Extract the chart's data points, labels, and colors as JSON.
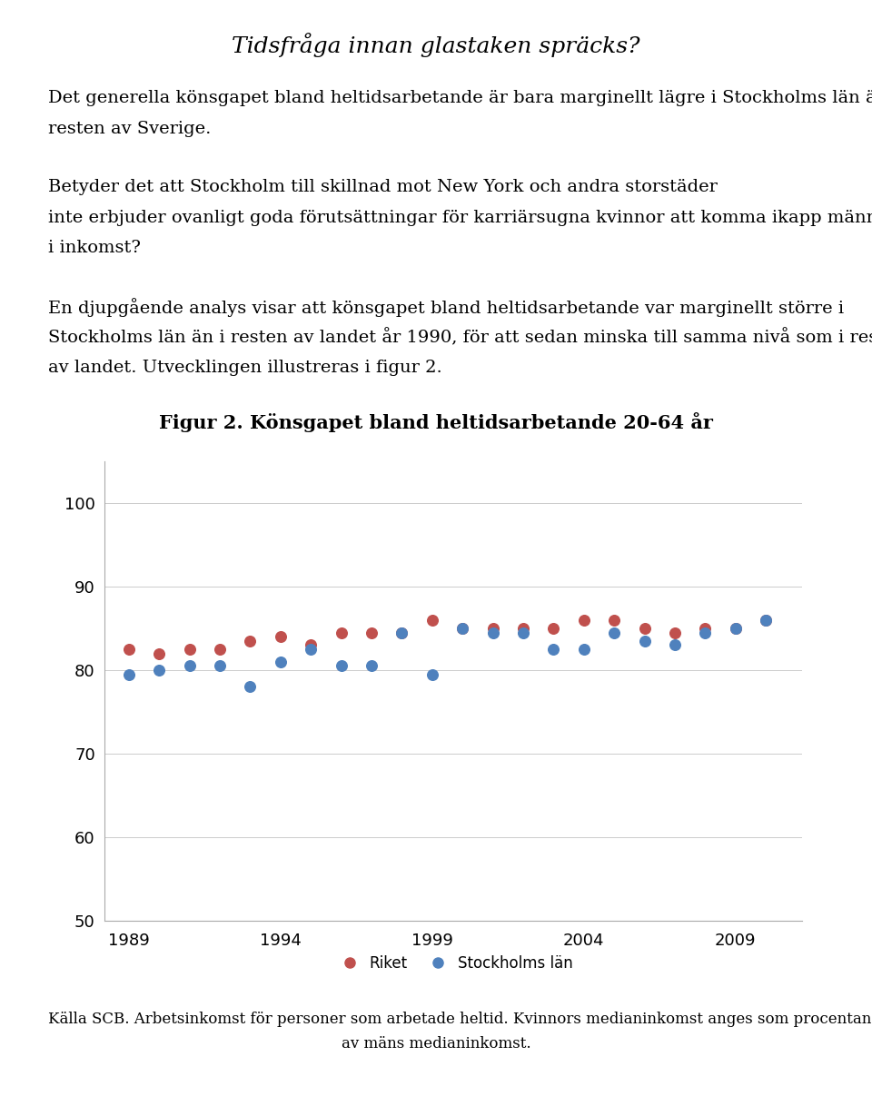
{
  "title": "Figur 2. Könsgapet bland heltidsarbetande 20-64 år",
  "riket_years": [
    1989,
    1990,
    1991,
    1992,
    1993,
    1994,
    1995,
    1996,
    1997,
    1998,
    1999,
    2000,
    2001,
    2002,
    2003,
    2004,
    2005,
    2006,
    2007,
    2008,
    2009,
    2010
  ],
  "riket_values": [
    82.5,
    82.0,
    82.5,
    82.5,
    83.5,
    84.0,
    83.0,
    84.5,
    84.5,
    84.5,
    86.0,
    85.0,
    85.0,
    85.0,
    85.0,
    86.0,
    86.0,
    85.0,
    84.5,
    85.0,
    85.0,
    86.0
  ],
  "stockholm_years": [
    1989,
    1990,
    1991,
    1992,
    1993,
    1994,
    1995,
    1996,
    1997,
    1998,
    1999,
    2000,
    2001,
    2002,
    2003,
    2004,
    2005,
    2006,
    2007,
    2008,
    2009,
    2010
  ],
  "stockholm_values": [
    79.5,
    80.0,
    80.5,
    80.5,
    78.0,
    81.0,
    82.5,
    80.5,
    80.5,
    84.5,
    79.5,
    85.0,
    84.5,
    84.5,
    82.5,
    82.5,
    84.5,
    83.5,
    83.0,
    84.5,
    85.0,
    86.0
  ],
  "riket_color": "#C0504D",
  "stockholm_color": "#4F81BD",
  "ylim": [
    50,
    105
  ],
  "yticks": [
    50,
    60,
    70,
    80,
    90,
    100
  ],
  "xlim": [
    1988.2,
    2011.2
  ],
  "xticks": [
    1989,
    1994,
    1999,
    2004,
    2009
  ],
  "legend_riket": "Riket",
  "legend_stockholm": "Stockholms län",
  "main_title": "Tidsfråga innan glastaken spräcks?",
  "para1_line1": "Det generella könsgapet bland heltidsarbetande är bara marginellt lägre i Stockholms län än i",
  "para1_line2": "resten av Sverige.",
  "para2_line1": "Betyder det att Stockholm till skillnad mot New York och andra storstäder",
  "para2_line2": "inte erbjuder ovanligt goda förutsättningar för karriärsugna kvinnor att komma ikapp männen",
  "para2_line3": "i inkomst?",
  "para3_line1": "En djupgående analys visar att könsgapet bland heltidsarbetande var marginellt större i",
  "para3_line2": "Stockholms län än i resten av landet år 1990, för att sedan minska till samma nivå som i resten",
  "para3_line3": "av landet. Utvecklingen illustreras i figur 2.",
  "footnote_line1": "Källa SCB. Arbetsinkomst för personer som arbetade heltid. Kvinnors medianinkomst anges som procentandel",
  "footnote_line2": "av mäns medianinkomst.",
  "marker_size": 70,
  "text_fontsize": 14,
  "title_fontsize": 18,
  "fig_title_fontsize": 15,
  "footnote_fontsize": 12,
  "tick_fontsize": 13
}
